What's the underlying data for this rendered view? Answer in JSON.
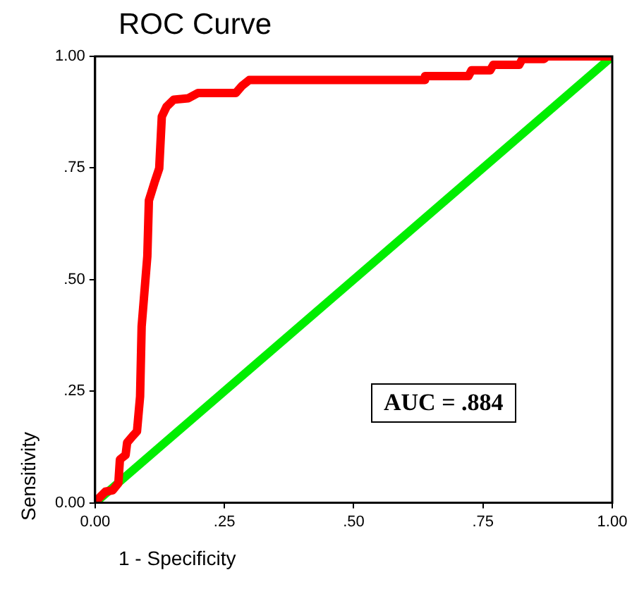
{
  "chart_data": {
    "type": "line",
    "title": "ROC Curve",
    "xlabel": "1 - Specificity",
    "ylabel": "Sensitivity",
    "annotations": [
      "AUC = .884"
    ],
    "xlim": [
      0,
      1
    ],
    "ylim": [
      0,
      1
    ],
    "xticks": [
      {
        "value": 0,
        "label": "0.00"
      },
      {
        "value": 0.25,
        "label": ".25"
      },
      {
        "value": 0.5,
        "label": ".50"
      },
      {
        "value": 0.75,
        "label": ".75"
      },
      {
        "value": 1,
        "label": "1.00"
      }
    ],
    "yticks": [
      {
        "value": 0,
        "label": "0.00"
      },
      {
        "value": 0.25,
        "label": ".25"
      },
      {
        "value": 0.5,
        "label": ".50"
      },
      {
        "value": 0.75,
        "label": ".75"
      },
      {
        "value": 1,
        "label": "1.00"
      }
    ],
    "marker": "none",
    "line_style": "solid",
    "series": [
      {
        "color": "#ff0000",
        "x": [
          0,
          0.006,
          0.02,
          0.034,
          0.045,
          0.048,
          0.059,
          0.062,
          0.073,
          0.081,
          0.087,
          0.09,
          0.101,
          0.104,
          0.115,
          0.124,
          0.129,
          0.138,
          0.152,
          0.18,
          0.199,
          0.272,
          0.284,
          0.298,
          0.638,
          0.638,
          0.722,
          0.728,
          0.764,
          0.77,
          0.82,
          0.826,
          0.868,
          0.874,
          1
        ],
        "values": [
          0,
          0.009,
          0.025,
          0.028,
          0.044,
          0.097,
          0.107,
          0.135,
          0.15,
          0.16,
          0.238,
          0.395,
          0.552,
          0.677,
          0.718,
          0.749,
          0.865,
          0.887,
          0.903,
          0.906,
          0.918,
          0.918,
          0.934,
          0.947,
          0.947,
          0.956,
          0.956,
          0.969,
          0.969,
          0.981,
          0.981,
          0.994,
          0.994,
          1,
          1
        ]
      },
      {
        "color": "#00ee00",
        "x": [
          0,
          1
        ],
        "values": [
          0,
          1
        ]
      }
    ]
  }
}
